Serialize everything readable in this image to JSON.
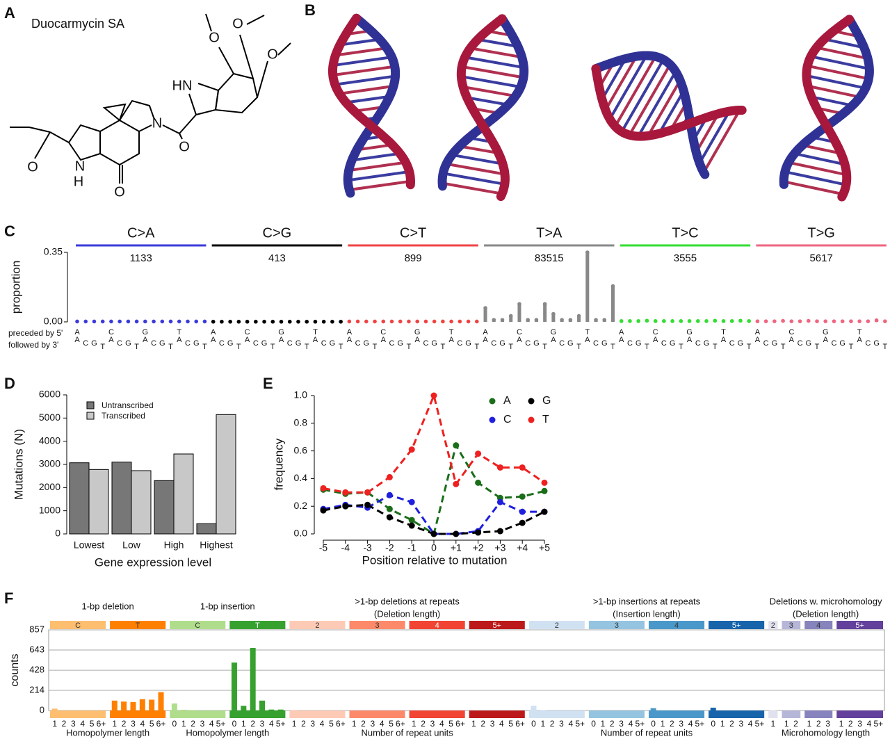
{
  "panel_labels": [
    "A",
    "B",
    "C",
    "D",
    "E",
    "F"
  ],
  "structure": {
    "title": "Duocarmycin SA",
    "atoms": [
      "O",
      "O",
      "O",
      "HN",
      "N",
      "O",
      "O",
      "N",
      "H",
      "O"
    ]
  },
  "chart_data": [
    {
      "type": "spectrum",
      "ylabel": "proportion",
      "ylim": [
        0,
        0.35
      ],
      "yticks": [
        {
          "value": 0,
          "label": "0.00"
        },
        {
          "value": 0.35,
          "label": "0.35"
        }
      ],
      "row_labels": [
        "preceded by 5'",
        "followed by 3'"
      ],
      "bases": [
        "A",
        "C",
        "G",
        "T"
      ],
      "groups": [
        {
          "name": "C>A",
          "count": 1133,
          "color": "#3b3bdb",
          "values": [
            0.002,
            0.002,
            0.002,
            0.002,
            0.002,
            0.002,
            0.002,
            0.002,
            0.002,
            0.002,
            0.002,
            0.002,
            0.002,
            0.002,
            0.002,
            0.002
          ]
        },
        {
          "name": "C>G",
          "count": 413,
          "color": "#000000",
          "values": [
            0.001,
            0.001,
            0.001,
            0.001,
            0.001,
            0.001,
            0.001,
            0.001,
            0.001,
            0.001,
            0.001,
            0.001,
            0.001,
            0.001,
            0.001,
            0.001
          ]
        },
        {
          "name": "C>T",
          "count": 899,
          "color": "#ee4444",
          "values": [
            0.002,
            0.002,
            0.002,
            0.002,
            0.002,
            0.002,
            0.002,
            0.002,
            0.002,
            0.002,
            0.002,
            0.002,
            0.002,
            0.002,
            0.002,
            0.002
          ]
        },
        {
          "name": "T>A",
          "count": 83515,
          "color": "#888888",
          "values": [
            0.07,
            0.01,
            0.01,
            0.03,
            0.09,
            0.01,
            0.01,
            0.09,
            0.04,
            0.01,
            0.01,
            0.03,
            0.35,
            0.01,
            0.01,
            0.18
          ]
        },
        {
          "name": "T>C",
          "count": 3555,
          "color": "#33dd33",
          "values": [
            0.004,
            0.004,
            0.004,
            0.006,
            0.004,
            0.004,
            0.004,
            0.004,
            0.004,
            0.004,
            0.004,
            0.006,
            0.004,
            0.004,
            0.006,
            0.004
          ]
        },
        {
          "name": "T>G",
          "count": 5617,
          "color": "#ee6680",
          "values": [
            0.003,
            0.003,
            0.003,
            0.005,
            0.003,
            0.003,
            0.005,
            0.003,
            0.003,
            0.003,
            0.003,
            0.003,
            0.003,
            0.003,
            0.008,
            0.003
          ]
        }
      ]
    },
    {
      "type": "grouped_bar",
      "xlabel": "Gene expression level",
      "ylabel": "Mutations (N)",
      "categories": [
        "Lowest",
        "Low",
        "High",
        "Highest"
      ],
      "series": [
        {
          "name": "Untranscribed",
          "color": "#777777",
          "values": [
            3070,
            3100,
            2300,
            440
          ]
        },
        {
          "name": "Transcribed",
          "color": "#c8c8c8",
          "values": [
            2780,
            2730,
            3450,
            5150
          ]
        }
      ],
      "ylim": [
        0,
        6000
      ],
      "yticks": [
        0,
        1000,
        2000,
        3000,
        4000,
        5000,
        6000
      ],
      "legend": "upper left"
    },
    {
      "type": "line",
      "xlabel": "Position relative to mutation",
      "ylabel": "frequency",
      "categories": [
        "-5",
        "-4",
        "-3",
        "-2",
        "-1",
        "0",
        "+1",
        "+2",
        "+3",
        "+4",
        "+5"
      ],
      "series": [
        {
          "name": "A",
          "color": "#1a6e1a",
          "values": [
            0.32,
            0.29,
            0.3,
            0.18,
            0.1,
            0.0,
            0.64,
            0.37,
            0.26,
            0.27,
            0.31
          ]
        },
        {
          "name": "C",
          "color": "#1f1fdd",
          "values": [
            0.18,
            0.21,
            0.19,
            0.28,
            0.23,
            0.0,
            0.0,
            0.02,
            0.23,
            0.16,
            0.16
          ]
        },
        {
          "name": "G",
          "color": "#000000",
          "values": [
            0.17,
            0.2,
            0.21,
            0.12,
            0.06,
            0.0,
            0.0,
            0.01,
            0.02,
            0.08,
            0.16
          ]
        },
        {
          "name": "T",
          "color": "#ee2020",
          "values": [
            0.33,
            0.3,
            0.3,
            0.41,
            0.61,
            1.0,
            0.36,
            0.58,
            0.48,
            0.48,
            0.37
          ]
        }
      ],
      "ylim": [
        0,
        1
      ],
      "yticks": [
        {
          "value": 0,
          "label": "0.0"
        },
        {
          "value": 0.2,
          "label": "0.2"
        },
        {
          "value": 0.4,
          "label": "0.4"
        },
        {
          "value": 0.6,
          "label": "0.6"
        },
        {
          "value": 0.8,
          "label": "0.8"
        },
        {
          "value": 1,
          "label": "1.0"
        }
      ],
      "legend": "upper right"
    },
    {
      "type": "indel",
      "ylabel": "counts",
      "ylim": [
        0,
        857
      ],
      "yticks": [
        0,
        214,
        428,
        643,
        857
      ],
      "grid": true,
      "groups": [
        {
          "title": "1-bp deletion",
          "xlabel": "Homopolymer length",
          "subgroups": [
            {
              "name": "C",
              "color": "#fdbe6f",
              "ticks": [
                "1",
                "2",
                "3",
                "4",
                "5",
                "6+"
              ],
              "values": [
                20,
                0,
                0,
                0,
                0,
                0
              ]
            },
            {
              "name": "T",
              "color": "#ff8001",
              "ticks": [
                "1",
                "2",
                "3",
                "4",
                "5",
                "6+"
              ],
              "values": [
                105,
                95,
                90,
                120,
                115,
                195
              ]
            }
          ]
        },
        {
          "title": "1-bp insertion",
          "xlabel": "Homopolymer length",
          "subgroups": [
            {
              "name": "C",
              "color": "#b0dd8b",
              "ticks": [
                "0",
                "1",
                "2",
                "3",
                "4",
                "5+"
              ],
              "values": [
                75,
                8,
                5,
                0,
                0,
                0
              ]
            },
            {
              "name": "T",
              "color": "#36a12e",
              "ticks": [
                "0",
                "1",
                "2",
                "3",
                "4",
                "5+"
              ],
              "values": [
                510,
                50,
                665,
                105,
                10,
                10
              ]
            }
          ]
        },
        {
          "title": ">1-bp deletions at repeats",
          "subtitle": "(Deletion length)",
          "xlabel": "Number of repeat units",
          "subgroups": [
            {
              "name": "2",
              "color": "#fdcab5",
              "ticks": [
                "1",
                "2",
                "3",
                "4",
                "5",
                "6+"
              ],
              "values": [
                5,
                0,
                0,
                0,
                0,
                0
              ]
            },
            {
              "name": "3",
              "color": "#fc8a6a",
              "ticks": [
                "1",
                "2",
                "3",
                "4",
                "5",
                "6+"
              ],
              "values": [
                0,
                0,
                0,
                0,
                0,
                0
              ]
            },
            {
              "name": "4",
              "color": "#f14432",
              "ticks": [
                "1",
                "2",
                "3",
                "4",
                "5",
                "6+"
              ],
              "values": [
                0,
                0,
                0,
                0,
                0,
                0
              ]
            },
            {
              "name": "5+",
              "color": "#bc191a",
              "ticks": [
                "1",
                "2",
                "3",
                "4",
                "5",
                "6+"
              ],
              "values": [
                0,
                0,
                0,
                0,
                0,
                0
              ]
            }
          ]
        },
        {
          "title": ">1-bp insertions at repeats",
          "subtitle": "(Insertion length)",
          "xlabel": "Number of repeat units",
          "subgroups": [
            {
              "name": "2",
              "color": "#d0e1f2",
              "ticks": [
                "0",
                "1",
                "2",
                "3",
                "4",
                "5+"
              ],
              "values": [
                50,
                5,
                0,
                0,
                0,
                0
              ]
            },
            {
              "name": "3",
              "color": "#94c4df",
              "ticks": [
                "0",
                "1",
                "2",
                "3",
                "4",
                "5+"
              ],
              "values": [
                0,
                0,
                0,
                0,
                0,
                0
              ]
            },
            {
              "name": "4",
              "color": "#4a98c9",
              "ticks": [
                "0",
                "1",
                "2",
                "3",
                "4",
                "5+"
              ],
              "values": [
                25,
                0,
                0,
                0,
                0,
                0
              ]
            },
            {
              "name": "5+",
              "color": "#1764ab",
              "ticks": [
                "0",
                "1",
                "2",
                "3",
                "4",
                "5+"
              ],
              "values": [
                30,
                0,
                0,
                0,
                0,
                0
              ]
            }
          ]
        },
        {
          "title": "Deletions w. microhomology",
          "subtitle": "(Deletion length)",
          "xlabel": "Microhomology length",
          "subgroups": [
            {
              "name": "2",
              "color": "#e2e2ef",
              "ticks": [
                "1"
              ],
              "values": [
                5
              ]
            },
            {
              "name": "3",
              "color": "#b6b6d8",
              "ticks": [
                "1",
                "2"
              ],
              "values": [
                0,
                0
              ]
            },
            {
              "name": "4",
              "color": "#8683bd",
              "ticks": [
                "1",
                "2",
                "3"
              ],
              "values": [
                0,
                0,
                0
              ]
            },
            {
              "name": "5+",
              "color": "#62409b",
              "ticks": [
                "1",
                "2",
                "3",
                "4",
                "5+"
              ],
              "values": [
                0,
                0,
                0,
                0,
                0
              ]
            }
          ]
        }
      ]
    }
  ]
}
